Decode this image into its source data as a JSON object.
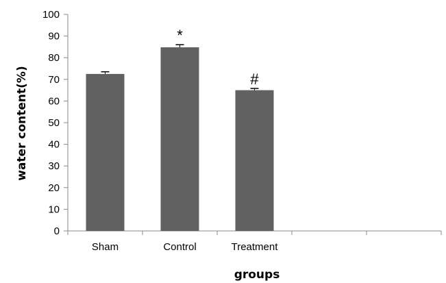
{
  "chart_data": {
    "type": "bar",
    "categories": [
      "Sham",
      "Control",
      "Treatment"
    ],
    "values": [
      72.5,
      84.8,
      65.0
    ],
    "errors": [
      1.0,
      1.2,
      0.8
    ],
    "annotations": [
      "",
      "*",
      "#"
    ],
    "title": "",
    "xlabel": "groups",
    "ylabel": "water content(%)",
    "ylim": [
      0,
      100
    ],
    "yticks": [
      0,
      10,
      20,
      30,
      40,
      50,
      60,
      70,
      80,
      90,
      100
    ],
    "grid": false,
    "legend": "none",
    "bar_color": "#616161"
  }
}
